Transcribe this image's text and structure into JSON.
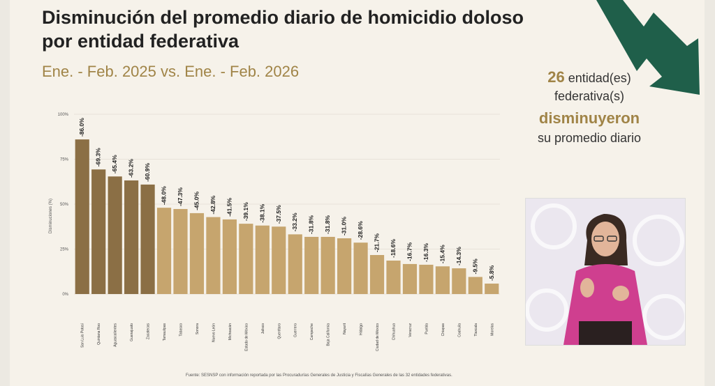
{
  "slide": {
    "title": "Disminución del promedio diario de homicidio doloso por entidad federativa",
    "subtitle": "Ene. - Feb. 2025 vs. Ene. - Feb. 2026",
    "summary": {
      "count": "26",
      "line1_rest": " entidad(es)",
      "line2": "federativa(s)",
      "highlight": "disminuyeron",
      "line4": "su promedio diario"
    },
    "source_note": "Fuente: SESNSP con información reportada por las Procuradurías Generales de Justicia y Fiscalías Generales de las 32 entidades federativas."
  },
  "colors": {
    "bar_dark": "#8b6f45",
    "bar_light": "#c6a56e",
    "accent_gold": "#a08447",
    "arrow_green": "#1f5f4a"
  },
  "chart_data": {
    "type": "bar",
    "ylabel": "Disminuciones (%)",
    "ylim": [
      0,
      100
    ],
    "yticks": [
      "0%",
      "25%",
      "50%",
      "75%",
      "100%"
    ],
    "categories": [
      "San Luis Potosí",
      "Quintana Roo",
      "Aguascalientes",
      "Guanajuato",
      "Zacatecas",
      "Tamaulipas",
      "Tabasco",
      "Sonora",
      "Nuevo León",
      "Michoacán",
      "Estado de México",
      "Jalisco",
      "Querétaro",
      "Guerrero",
      "Campeche",
      "Baja California",
      "Nayarit",
      "Hidalgo",
      "Ciudad de México",
      "Chihuahua",
      "Veracruz",
      "Puebla",
      "Chiapas",
      "Coahuila",
      "Tlaxcala",
      "Morelos"
    ],
    "values": [
      86.0,
      69.3,
      65.4,
      63.2,
      60.9,
      48.0,
      47.3,
      45.0,
      42.8,
      41.5,
      39.1,
      38.1,
      37.5,
      33.2,
      31.8,
      31.8,
      31.0,
      28.6,
      21.7,
      18.6,
      16.7,
      16.3,
      15.4,
      14.3,
      9.5,
      5.8
    ],
    "labels": [
      "-86.0%",
      "-69.3%",
      "-65.4%",
      "-63.2%",
      "-60.9%",
      "-48.0%",
      "-47.3%",
      "-45.0%",
      "-42.8%",
      "-41.5%",
      "-39.1%",
      "-38.1%",
      "-37.5%",
      "-33.2%",
      "-31.8%",
      "-31.8%",
      "-31.0%",
      "-28.6%",
      "-21.7%",
      "-18.6%",
      "-16.7%",
      "-16.3%",
      "-15.4%",
      "-14.3%",
      "-9.5%",
      "-5.8%"
    ]
  }
}
